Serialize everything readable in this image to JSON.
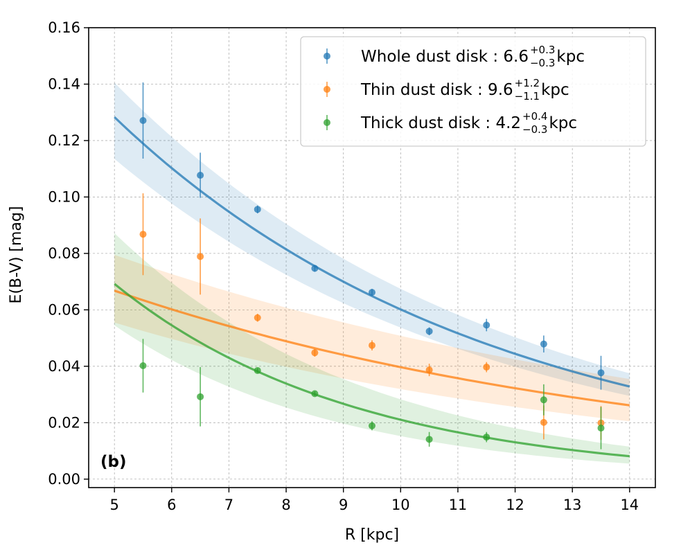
{
  "chart_data": {
    "type": "scatter",
    "panel_label": "(b)",
    "xlabel": "R  [kpc]",
    "ylabel": "E(B-V)  [mag]",
    "xlim": [
      4.55,
      14.45
    ],
    "ylim": [
      -0.003,
      0.16
    ],
    "xticks": [
      "5",
      "6",
      "7",
      "8",
      "9",
      "10",
      "11",
      "12",
      "13",
      "14"
    ],
    "yticks": [
      "0.00",
      "0.02",
      "0.04",
      "0.06",
      "0.08",
      "0.10",
      "0.12",
      "0.14",
      "0.16"
    ],
    "grid": true,
    "legend_position": "top-right",
    "series": [
      {
        "name": "Whole dust disk",
        "legend_prefix": "Whole dust disk : 6.6",
        "legend_sup": "+0.3",
        "legend_sub": "−0.3",
        "legend_unit": " kpc",
        "color": "#1f77b4",
        "scale_length": 6.6,
        "fit": {
          "amplitude": 0.1283,
          "x0": 5,
          "scale": 6.6
        },
        "band_low": [
          0.1135,
          0.0295
        ],
        "band_high": [
          0.1405,
          0.0375
        ],
        "points": [
          {
            "x": 5.5,
            "y": 0.1271,
            "err": 0.0135
          },
          {
            "x": 6.5,
            "y": 0.1077,
            "err": 0.008
          },
          {
            "x": 7.5,
            "y": 0.0956,
            "err": 0.0014
          },
          {
            "x": 8.5,
            "y": 0.0747,
            "err": 0.0012
          },
          {
            "x": 9.5,
            "y": 0.0662,
            "err": 0.0012
          },
          {
            "x": 10.5,
            "y": 0.0524,
            "err": 0.0014
          },
          {
            "x": 11.5,
            "y": 0.0546,
            "err": 0.0022
          },
          {
            "x": 12.5,
            "y": 0.0479,
            "err": 0.003
          },
          {
            "x": 13.5,
            "y": 0.0377,
            "err": 0.006
          }
        ]
      },
      {
        "name": "Thin dust disk",
        "legend_prefix": "Thin dust disk : 9.6",
        "legend_sup": "+1.2",
        "legend_sub": "−1.1",
        "legend_unit": " kpc",
        "color": "#ff7f0e",
        "scale_length": 9.6,
        "fit": {
          "amplitude": 0.0668,
          "x0": 5,
          "scale": 9.6
        },
        "band_low": [
          0.0555,
          0.0205
        ],
        "band_high": [
          0.0795,
          0.0355
        ],
        "points": [
          {
            "x": 5.5,
            "y": 0.0868,
            "err": 0.0145
          },
          {
            "x": 6.5,
            "y": 0.0789,
            "err": 0.0135
          },
          {
            "x": 7.5,
            "y": 0.0572,
            "err": 0.0014
          },
          {
            "x": 8.5,
            "y": 0.0448,
            "err": 0.0014
          },
          {
            "x": 9.5,
            "y": 0.0474,
            "err": 0.0018
          },
          {
            "x": 10.5,
            "y": 0.0387,
            "err": 0.0022
          },
          {
            "x": 11.5,
            "y": 0.0397,
            "err": 0.0018
          },
          {
            "x": 12.5,
            "y": 0.0201,
            "err": 0.006
          },
          {
            "x": 13.5,
            "y": 0.0199,
            "err": 0.006
          }
        ]
      },
      {
        "name": "Thick dust disk",
        "legend_prefix": "Thick dust disk : 4.2",
        "legend_sup": "+0.4",
        "legend_sub": "−0.3",
        "legend_unit": " kpc",
        "color": "#2ca02c",
        "scale_length": 4.2,
        "fit": {
          "amplitude": 0.0692,
          "x0": 5,
          "scale": 4.2
        },
        "band_low": [
          0.0545,
          0.0055
        ],
        "band_high": [
          0.0872,
          0.0115
        ],
        "points": [
          {
            "x": 5.5,
            "y": 0.0402,
            "err": 0.0095
          },
          {
            "x": 6.5,
            "y": 0.0292,
            "err": 0.0105
          },
          {
            "x": 7.5,
            "y": 0.0385,
            "err": 0.0008
          },
          {
            "x": 8.5,
            "y": 0.0303,
            "err": 0.0008
          },
          {
            "x": 9.5,
            "y": 0.0189,
            "err": 0.0016
          },
          {
            "x": 10.5,
            "y": 0.0141,
            "err": 0.0026
          },
          {
            "x": 11.5,
            "y": 0.0149,
            "err": 0.0018
          },
          {
            "x": 12.5,
            "y": 0.0281,
            "err": 0.0055
          },
          {
            "x": 13.5,
            "y": 0.0181,
            "err": 0.0075
          }
        ]
      }
    ]
  }
}
